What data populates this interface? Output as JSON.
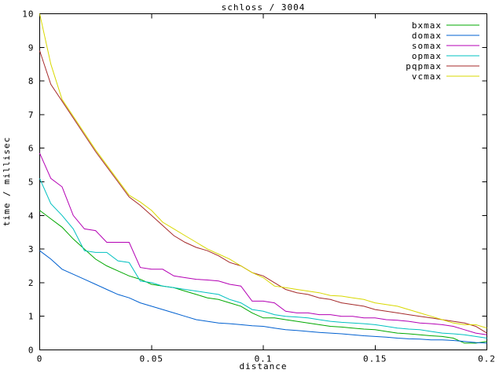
{
  "window": {
    "background": "#ffffff"
  },
  "chart_data": {
    "type": "line",
    "title": "schloss / 3004",
    "xlabel": "distance",
    "ylabel": "time / millisec",
    "xlim": [
      0,
      0.2
    ],
    "ylim": [
      0,
      10
    ],
    "grid": false,
    "legend_position": "top-right-inside",
    "axis_color": "#000000",
    "background_color": "#ffffff",
    "xticks": [
      {
        "v": 0,
        "label": "0"
      },
      {
        "v": 0.05,
        "label": "0.05"
      },
      {
        "v": 0.1,
        "label": "0.1"
      },
      {
        "v": 0.15,
        "label": "0.15"
      },
      {
        "v": 0.2,
        "label": "0.2"
      }
    ],
    "yticks": [
      {
        "v": 0,
        "label": "0"
      },
      {
        "v": 1,
        "label": "1"
      },
      {
        "v": 2,
        "label": "2"
      },
      {
        "v": 3,
        "label": "3"
      },
      {
        "v": 4,
        "label": "4"
      },
      {
        "v": 5,
        "label": "5"
      },
      {
        "v": 6,
        "label": "6"
      },
      {
        "v": 7,
        "label": "7"
      },
      {
        "v": 8,
        "label": "8"
      },
      {
        "v": 9,
        "label": "9"
      },
      {
        "v": 10,
        "label": "10"
      }
    ],
    "x": [
      0,
      0.005,
      0.01,
      0.015,
      0.02,
      0.025,
      0.03,
      0.035,
      0.04,
      0.045,
      0.05,
      0.055,
      0.06,
      0.065,
      0.07,
      0.075,
      0.08,
      0.085,
      0.09,
      0.095,
      0.1,
      0.105,
      0.11,
      0.115,
      0.12,
      0.125,
      0.13,
      0.135,
      0.14,
      0.145,
      0.15,
      0.155,
      0.16,
      0.165,
      0.17,
      0.175,
      0.18,
      0.185,
      0.19,
      0.195,
      0.2
    ],
    "series": [
      {
        "name": "bxmax",
        "color": "#00a800",
        "values": [
          4.15,
          3.9,
          3.65,
          3.3,
          3.0,
          2.7,
          2.5,
          2.35,
          2.2,
          2.1,
          1.95,
          1.9,
          1.85,
          1.75,
          1.65,
          1.55,
          1.5,
          1.4,
          1.3,
          1.1,
          0.95,
          0.95,
          0.9,
          0.85,
          0.8,
          0.75,
          0.7,
          0.68,
          0.65,
          0.62,
          0.6,
          0.55,
          0.5,
          0.48,
          0.45,
          0.42,
          0.4,
          0.35,
          0.2,
          0.2,
          0.25
        ]
      },
      {
        "name": "domax",
        "color": "#0060d0",
        "values": [
          2.95,
          2.7,
          2.4,
          2.25,
          2.1,
          1.95,
          1.8,
          1.65,
          1.55,
          1.4,
          1.3,
          1.2,
          1.1,
          1.0,
          0.9,
          0.85,
          0.8,
          0.78,
          0.75,
          0.72,
          0.7,
          0.65,
          0.6,
          0.58,
          0.55,
          0.52,
          0.5,
          0.48,
          0.45,
          0.42,
          0.4,
          0.38,
          0.35,
          0.33,
          0.32,
          0.3,
          0.3,
          0.28,
          0.25,
          0.22,
          0.2
        ]
      },
      {
        "name": "somax",
        "color": "#b400b4",
        "values": [
          5.85,
          5.1,
          4.85,
          4.0,
          3.6,
          3.55,
          3.2,
          3.2,
          3.2,
          2.45,
          2.4,
          2.4,
          2.2,
          2.15,
          2.1,
          2.08,
          2.05,
          1.95,
          1.9,
          1.45,
          1.45,
          1.4,
          1.15,
          1.1,
          1.1,
          1.05,
          1.05,
          1.0,
          1.0,
          0.95,
          0.95,
          0.9,
          0.88,
          0.85,
          0.8,
          0.78,
          0.75,
          0.7,
          0.6,
          0.5,
          0.45
        ]
      },
      {
        "name": "opmax",
        "color": "#00c0c0",
        "values": [
          5.1,
          4.35,
          4.0,
          3.6,
          2.95,
          2.9,
          2.9,
          2.65,
          2.6,
          2.05,
          2.0,
          1.9,
          1.85,
          1.8,
          1.75,
          1.7,
          1.65,
          1.5,
          1.4,
          1.2,
          1.15,
          1.05,
          1.0,
          0.98,
          0.95,
          0.9,
          0.85,
          0.82,
          0.8,
          0.78,
          0.75,
          0.7,
          0.65,
          0.62,
          0.6,
          0.55,
          0.5,
          0.48,
          0.45,
          0.4,
          0.35
        ]
      },
      {
        "name": "pqpmax",
        "color": "#a52a2a",
        "values": [
          8.9,
          7.9,
          7.4,
          6.9,
          6.4,
          5.9,
          5.45,
          5.0,
          4.55,
          4.3,
          4.0,
          3.7,
          3.4,
          3.2,
          3.05,
          2.95,
          2.8,
          2.6,
          2.5,
          2.3,
          2.2,
          2.0,
          1.8,
          1.7,
          1.65,
          1.55,
          1.5,
          1.4,
          1.35,
          1.3,
          1.2,
          1.15,
          1.1,
          1.05,
          1.0,
          0.95,
          0.9,
          0.85,
          0.8,
          0.7,
          0.5
        ]
      },
      {
        "name": "vcmax",
        "color": "#d8d800",
        "values": [
          10.0,
          8.5,
          7.45,
          6.95,
          6.45,
          5.95,
          5.5,
          5.05,
          4.6,
          4.4,
          4.15,
          3.8,
          3.6,
          3.4,
          3.2,
          3.0,
          2.85,
          2.7,
          2.5,
          2.3,
          2.15,
          1.9,
          1.85,
          1.8,
          1.75,
          1.7,
          1.62,
          1.6,
          1.55,
          1.5,
          1.4,
          1.35,
          1.3,
          1.2,
          1.1,
          1.0,
          0.9,
          0.8,
          0.75,
          0.75,
          0.65
        ]
      }
    ]
  }
}
